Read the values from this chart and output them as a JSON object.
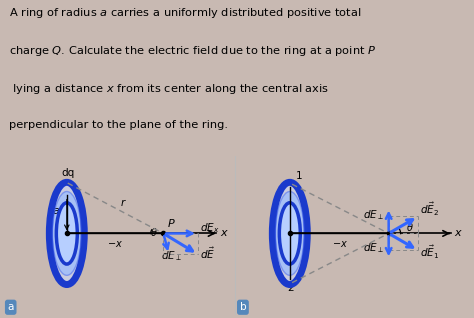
{
  "bg_color": "#c8b9b2",
  "panel_color": "#f0eeee",
  "ring_blue_outer": "#1a3acc",
  "ring_blue_mid": "#4466ee",
  "ring_blue_light": "#99bbff",
  "ring_blue_fill": "#ccdcff",
  "arrow_blue": "#3366ff",
  "dashed_color": "#888888",
  "black": "#000000",
  "label_badge": "#5588bb",
  "title_line1": "A ring of radius $\\mathit{a}$ carries a uniformly distributed positive total",
  "title_line2": "charge $\\mathit{Q}$. Calculate the electric field due to the ring at a point $\\mathit{P}$",
  "title_line3": " lying a distance $\\mathit{x}$ from its center along the central axis",
  "title_line4": "perpendicular to the plane of the ring."
}
